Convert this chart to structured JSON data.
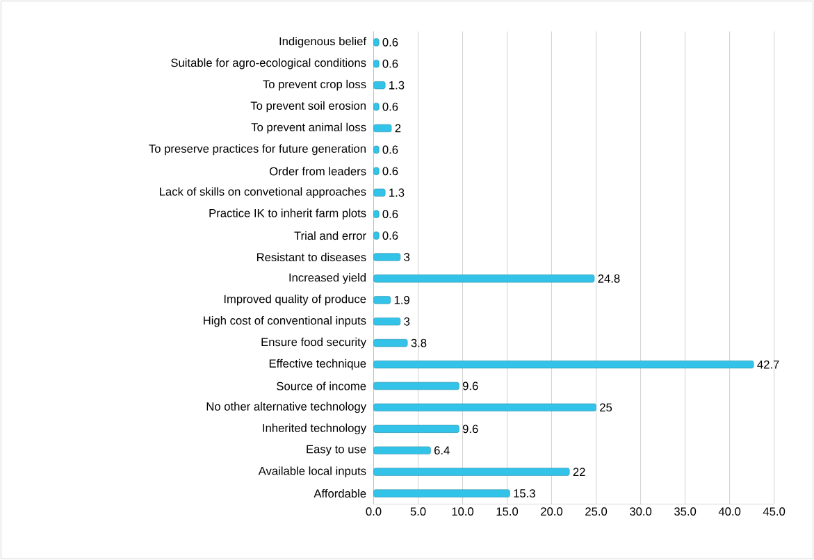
{
  "chart_data": {
    "type": "bar",
    "orientation": "horizontal",
    "categories": [
      "Indigenous belief",
      "Suitable for agro-ecological conditions",
      "To prevent crop loss",
      "To prevent soil erosion",
      "To prevent animal  loss",
      "To preserve practices for future generation",
      "Order from leaders",
      "Lack of skills on convetional approaches",
      "Practice IK to inherit farm plots",
      "Trial and error",
      "Resistant to diseases",
      "Increased yield",
      "Improved quality of produce",
      "High cost of conventional inputs",
      "Ensure food security",
      "Effective technique",
      "Source of income",
      "No other alternative technology",
      "Inherited technology",
      "Easy to use",
      "Available local inputs",
      "Affordable"
    ],
    "values": [
      0.6,
      0.6,
      1.3,
      0.6,
      2,
      0.6,
      0.6,
      1.3,
      0.6,
      0.6,
      3,
      24.8,
      1.9,
      3,
      3.8,
      42.7,
      9.6,
      25,
      9.6,
      6.4,
      22,
      15.3
    ],
    "color": "#33c3e8",
    "data_labels": true,
    "grid": "x",
    "xlim": [
      0,
      45
    ],
    "xticks": [
      {
        "value": 0,
        "label": "0.0"
      },
      {
        "value": 5,
        "label": "5.0"
      },
      {
        "value": 10,
        "label": "10.0"
      },
      {
        "value": 15,
        "label": "15.0"
      },
      {
        "value": 20,
        "label": "20.0"
      },
      {
        "value": 25,
        "label": "25.0"
      },
      {
        "value": 30,
        "label": "30.0"
      },
      {
        "value": 35,
        "label": "35.0"
      },
      {
        "value": 40,
        "label": "40.0"
      },
      {
        "value": 45,
        "label": "45.0"
      }
    ]
  }
}
